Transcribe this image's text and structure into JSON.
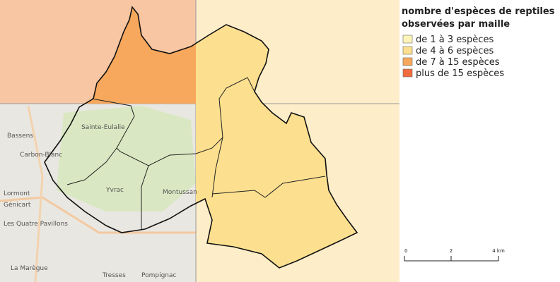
{
  "legend": {
    "title_lines": [
      "nombre d'espèces de reptiles",
      "observées par maille"
    ],
    "items": [
      {
        "label": "de 1 à 3 espèces",
        "color": "#fff4b8"
      },
      {
        "label": "de 4 à 6 espèces",
        "color": "#fde08f"
      },
      {
        "label": "de 7 à 15 espèces",
        "color": "#f7a85c"
      },
      {
        "label": "plus de 15 espèces",
        "color": "#f26b3f"
      }
    ]
  },
  "scale_bar": {
    "labels": [
      "0",
      "2",
      "4 km"
    ]
  },
  "map_labels": [
    "Sainte-Eulalie",
    "Yvrac",
    "Montussan",
    "Carbon-Blanc",
    "Bassens",
    "Lormont",
    "Les Quatre Pavillons",
    "Tresses",
    "Pompignac",
    "La Marègue",
    "Génicart"
  ]
}
